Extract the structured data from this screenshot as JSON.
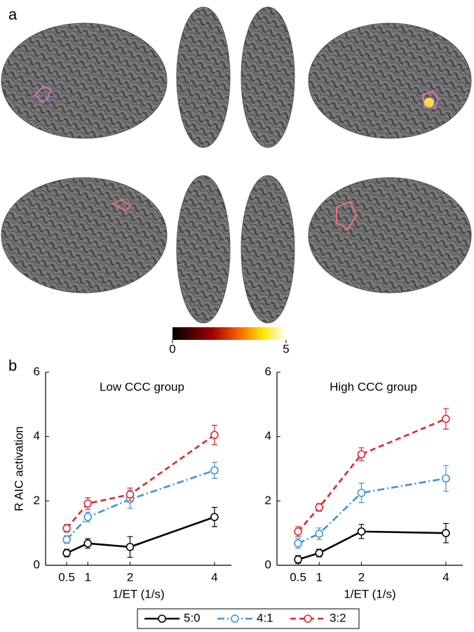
{
  "figure": {
    "panel_labels": [
      "a",
      "b"
    ],
    "colorbar": {
      "range": [
        0,
        5
      ],
      "ticks": [
        0,
        5
      ]
    }
  },
  "chart_data": [
    {
      "type": "line",
      "title": "Low CCC group",
      "y_label": "R AIC activation",
      "x_label": "1/ET (1/s)",
      "x": [
        0.5,
        1,
        2,
        4
      ],
      "xlim": [
        0,
        4.4
      ],
      "xticks": [
        0.5,
        1,
        2,
        4
      ],
      "ylim": [
        0,
        6
      ],
      "yticks": [
        0,
        2,
        4,
        6
      ],
      "series": [
        {
          "name": "5:0",
          "color": "#000000",
          "dash": "solid",
          "values": [
            0.38,
            0.68,
            0.57,
            1.5
          ],
          "errors": [
            0.12,
            0.15,
            0.32,
            0.3
          ]
        },
        {
          "name": "4:1",
          "color": "#3a95e0",
          "dash": "dashdot",
          "values": [
            0.8,
            1.5,
            2.05,
            2.95
          ],
          "errors": [
            0.12,
            0.15,
            0.28,
            0.25
          ]
        },
        {
          "name": "3:2",
          "color": "#e8242a",
          "dash": "dashed",
          "values": [
            1.15,
            1.92,
            2.2,
            4.05
          ],
          "errors": [
            0.12,
            0.18,
            0.2,
            0.3
          ]
        }
      ]
    },
    {
      "type": "line",
      "title": "High CCC group",
      "x_label": "1/ET (1/s)",
      "x": [
        0.5,
        1,
        2,
        4
      ],
      "xlim": [
        0,
        4.4
      ],
      "xticks": [
        0.5,
        1,
        2,
        4
      ],
      "ylim": [
        0,
        6
      ],
      "yticks": [
        0,
        2,
        4,
        6
      ],
      "series": [
        {
          "color": "#000000",
          "dash": "solid",
          "values": [
            0.18,
            0.38,
            1.05,
            1.0
          ],
          "errors": [
            0.12,
            0.12,
            0.22,
            0.3
          ]
        },
        {
          "color": "#3a95e0",
          "dash": "dashdot",
          "values": [
            0.68,
            0.98,
            2.25,
            2.7
          ],
          "errors": [
            0.15,
            0.18,
            0.3,
            0.4
          ]
        },
        {
          "color": "#e8242a",
          "dash": "dashed",
          "values": [
            1.05,
            1.8,
            3.45,
            4.55
          ],
          "errors": [
            0.15,
            0.12,
            0.2,
            0.32
          ]
        }
      ]
    }
  ]
}
